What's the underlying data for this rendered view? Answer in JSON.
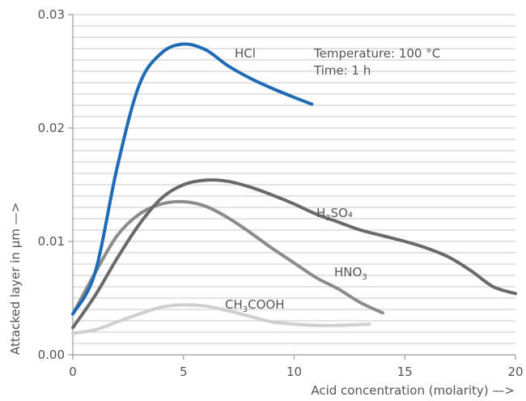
{
  "chart_data": {
    "type": "line",
    "xlabel": "Acid concentration (molarity) —>",
    "ylabel": "Attacked layer in µm —>",
    "xlim": [
      0,
      20
    ],
    "ylim": [
      0,
      0.03
    ],
    "x_ticks": [
      0,
      5,
      10,
      15,
      20
    ],
    "x_tick_labels": [
      "0",
      "5",
      "10",
      "15",
      "20"
    ],
    "y_ticks": [
      0,
      0.01,
      0.02,
      0.03
    ],
    "y_tick_labels": [
      "0.00",
      "0.01",
      "0.02",
      "0.03"
    ],
    "grid": true,
    "annotations": [
      {
        "text": "Temperature: 100 °C"
      },
      {
        "text": "Time: 1 h"
      }
    ],
    "series": [
      {
        "name": "HCl",
        "color": "#1f6bb5",
        "label_base": "HCl",
        "label_sub": "",
        "label_tail": "",
        "x": [
          0,
          1,
          2,
          3,
          4,
          5,
          6,
          7,
          8,
          9,
          10,
          10.8
        ],
        "y": [
          0.0036,
          0.0072,
          0.0165,
          0.0238,
          0.0266,
          0.0274,
          0.0269,
          0.0255,
          0.0244,
          0.0235,
          0.0227,
          0.0221
        ]
      },
      {
        "name": "H2SO4",
        "color": "#6a6a6a",
        "label_base": "H",
        "label_sub": "2",
        "label_tail": "SO₄",
        "x": [
          0,
          1,
          2,
          3,
          4,
          5,
          6,
          7,
          8,
          9,
          10,
          11,
          12,
          13,
          14,
          15,
          16,
          17,
          18,
          19,
          20
        ],
        "y": [
          0.0024,
          0.0052,
          0.0085,
          0.0115,
          0.0138,
          0.015,
          0.0154,
          0.0153,
          0.0148,
          0.0141,
          0.0133,
          0.0124,
          0.0117,
          0.011,
          0.0105,
          0.01,
          0.0094,
          0.0086,
          0.0074,
          0.006,
          0.0054
        ]
      },
      {
        "name": "HNO3",
        "color": "#8c8c8c",
        "label_base": "HNO",
        "label_sub": "3",
        "label_tail": "",
        "x": [
          0,
          1,
          2,
          3,
          4,
          5,
          6,
          7,
          8,
          9,
          10,
          11,
          12,
          13,
          14
        ],
        "y": [
          0.0036,
          0.0072,
          0.0105,
          0.0124,
          0.0133,
          0.0135,
          0.0131,
          0.0121,
          0.0108,
          0.0094,
          0.0081,
          0.0068,
          0.0058,
          0.0046,
          0.0037
        ]
      },
      {
        "name": "CH3COOH",
        "color": "#cfcfcf",
        "label_base": "CH",
        "label_sub": "3",
        "label_tail": "COOH",
        "x": [
          0,
          1,
          2,
          3,
          4,
          5,
          6,
          7,
          8,
          9,
          10,
          11,
          12,
          13.4
        ],
        "y": [
          0.0019,
          0.0022,
          0.0029,
          0.0036,
          0.0042,
          0.0044,
          0.0043,
          0.0039,
          0.0034,
          0.0029,
          0.0027,
          0.0026,
          0.0026,
          0.0027
        ]
      }
    ]
  }
}
